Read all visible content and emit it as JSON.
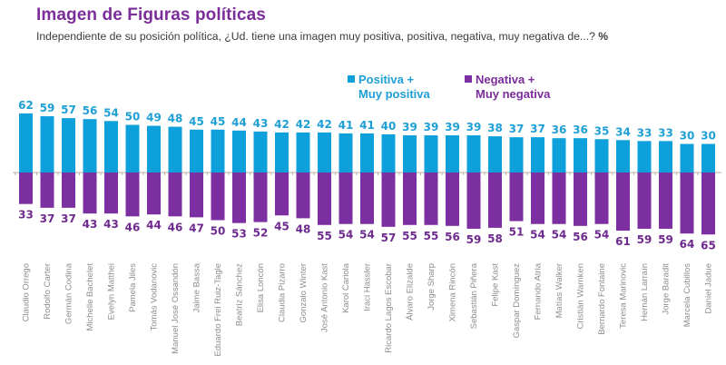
{
  "header": {
    "title": "Imagen de Figuras políticas",
    "subtitle": "Independiente de su posición política, ¿Ud. tiene una imagen muy positiva, positiva, negativa, muy negativa de...?",
    "unit": "%"
  },
  "colors": {
    "positive": "#0da0db",
    "negative": "#7c2fa1",
    "positive_label": "#1e9fd6",
    "negative_label": "#6e2a8e",
    "title": "#7b2d99"
  },
  "chart_data": {
    "type": "bar",
    "title": "Imagen de Figuras políticas",
    "subtitle": "Independiente de su posición política, ¿Ud. tiene una imagen muy positiva, positiva, negativa, muy negativa de...? %",
    "xlabel": "",
    "ylabel": "%",
    "legend_position": "top-center",
    "grid": false,
    "ylim": [
      -65,
      62
    ],
    "categories": [
      "Claudio Orrego",
      "Rodolfo Carter",
      "Germán Codina",
      "Michelle Bachelet",
      "Evelyn Matthei",
      "Pamela Jiles",
      "Tomás Vodanovic",
      "Manuel José Ossandón",
      "Jaime Bassa",
      "Eduardo Frei Ruiz-Tagle",
      "Beatriz Sánchez",
      "Elisa Loncón",
      "Claudia Pizarro",
      "Gonzalo Winter",
      "José Antonio Kast",
      "Karol Cariola",
      "Iraci Hassler",
      "Ricardo Lagos Escobar",
      "Álvaro Elizalde",
      "Jorge Sharp",
      "Ximena Rincón",
      "Sebastián Piñera",
      "Felipe Kast",
      "Gaspar Domínguez",
      "Fernando Atria",
      "Matías Walker",
      "Cristián Warnken",
      "Bernardo Fontaine",
      "Teresa Marinovic",
      "Hernán Larraín",
      "Jorge Baradit",
      "Marcela Cubillos",
      "Daniel Jadue"
    ],
    "series": [
      {
        "name": "Positiva + Muy positiva",
        "values": [
          62,
          59,
          57,
          56,
          54,
          50,
          49,
          48,
          45,
          45,
          44,
          43,
          42,
          42,
          42,
          41,
          41,
          40,
          39,
          39,
          39,
          39,
          38,
          37,
          37,
          36,
          36,
          35,
          34,
          33,
          33,
          30,
          30
        ]
      },
      {
        "name": "Negativa + Muy negativa",
        "values": [
          33,
          37,
          37,
          43,
          43,
          46,
          44,
          46,
          47,
          50,
          53,
          52,
          45,
          48,
          55,
          54,
          54,
          57,
          55,
          55,
          56,
          59,
          58,
          51,
          54,
          54,
          56,
          54,
          61,
          59,
          59,
          64,
          65
        ]
      }
    ]
  },
  "legend": {
    "positive": {
      "line1": "Positiva +",
      "line2": "Muy positiva"
    },
    "negative": {
      "line1": "Negativa +",
      "line2": "Muy negativa"
    }
  }
}
